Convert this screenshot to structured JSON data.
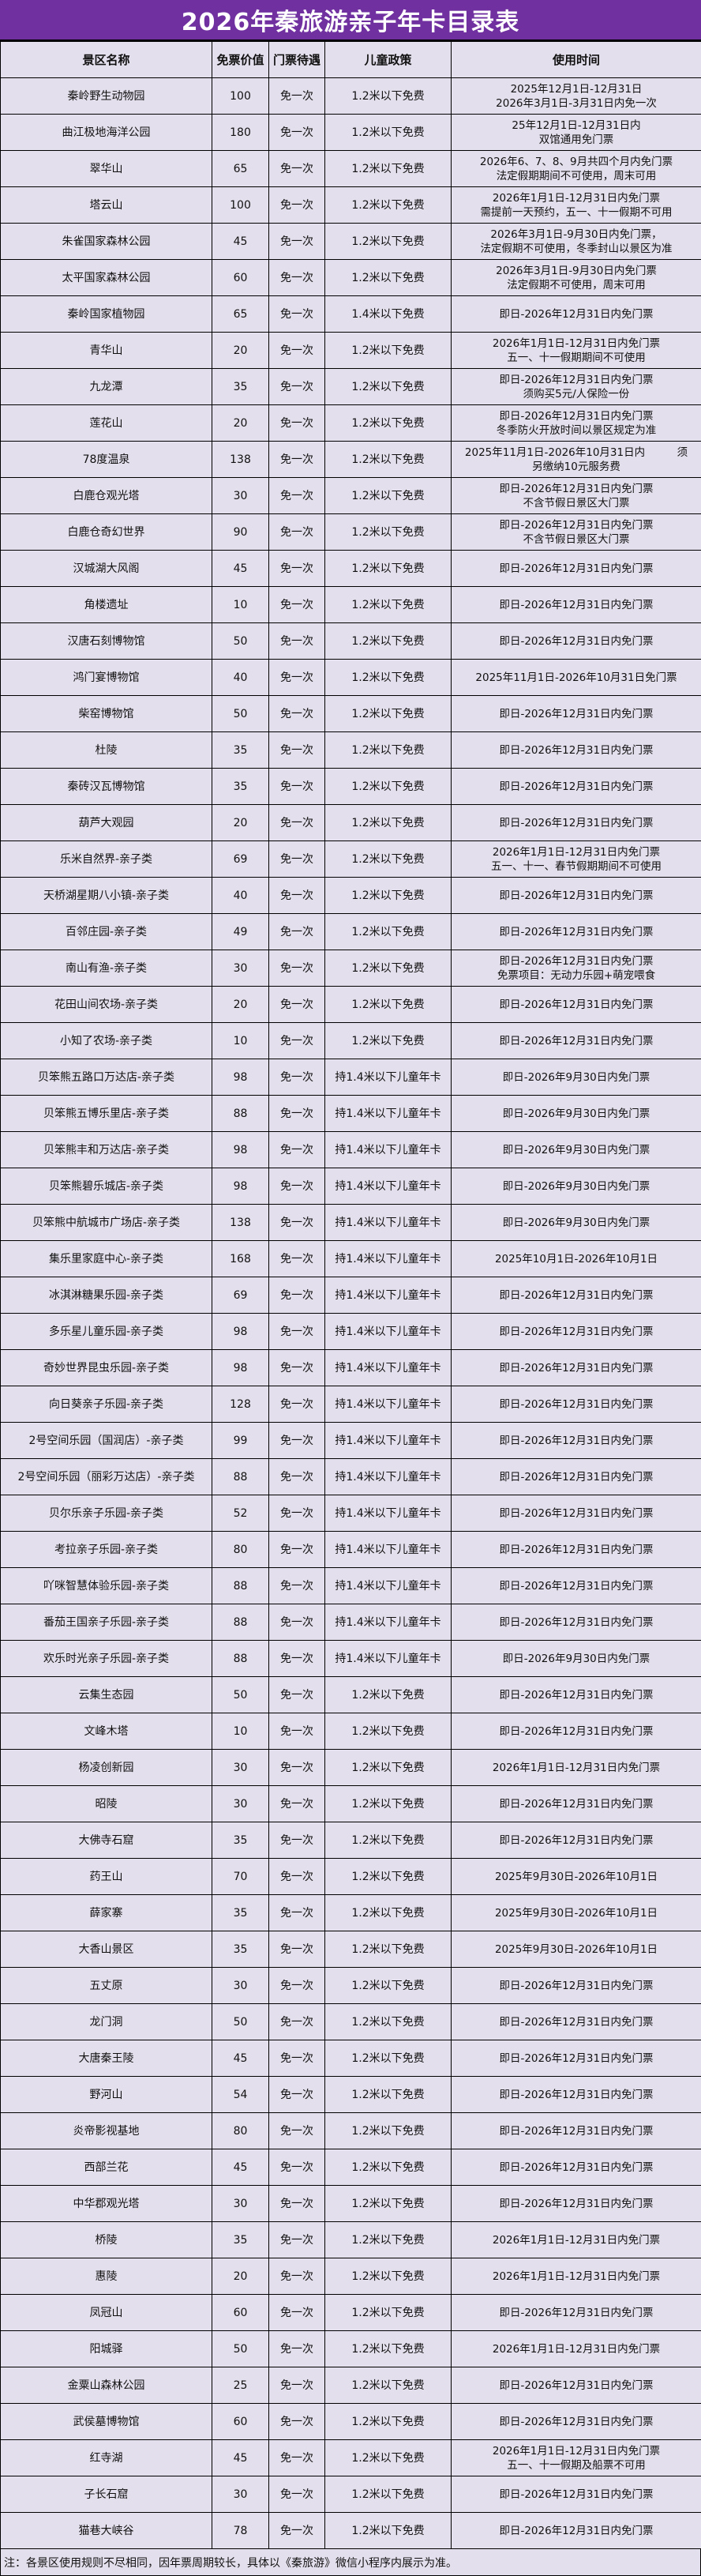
{
  "title": "2026年秦旅游亲子年卡目录表",
  "colors": {
    "title_bg": "#7030A0",
    "table_bg": "#E4DFEC"
  },
  "headers": [
    "景区名称",
    "免票价值",
    "门票待遇",
    "儿童政策",
    "使用时间"
  ],
  "rows": [
    {
      "name": "秦岭野生动物园",
      "price": "100",
      "ticket": "免一次",
      "child": "1.2米以下免费",
      "time": "2025年12月1日-12月31日\n2026年3月1日-3月31日内免一次"
    },
    {
      "name": "曲江极地海洋公园",
      "price": "180",
      "ticket": "免一次",
      "child": "1.2米以下免费",
      "time": "25年12月1日-12月31日内\n双馆通用免门票"
    },
    {
      "name": "翠华山",
      "price": "65",
      "ticket": "免一次",
      "child": "1.2米以下免费",
      "time": "2026年6、7、8、9月共四个月内免门票\n法定假期期间不可使用，周末可用"
    },
    {
      "name": "塔云山",
      "price": "100",
      "ticket": "免一次",
      "child": "1.2米以下免费",
      "time": "2026年1月1日-12月31日内免门票\n需提前一天预约，五一、十一假期不可用"
    },
    {
      "name": "朱雀国家森林公园",
      "price": "45",
      "ticket": "免一次",
      "child": "1.2米以下免费",
      "time": "2026年3月1日-9月30日内免门票，\n法定假期不可使用，冬季封山以景区为准"
    },
    {
      "name": "太平国家森林公园",
      "price": "60",
      "ticket": "免一次",
      "child": "1.2米以下免费",
      "time": "2026年3月1日-9月30日内免门票\n法定假期不可使用，周末可用"
    },
    {
      "name": "秦岭国家植物园",
      "price": "65",
      "ticket": "免一次",
      "child": "1.4米以下免费",
      "time": "即日-2026年12月31日内免门票"
    },
    {
      "name": "青华山",
      "price": "20",
      "ticket": "免一次",
      "child": "1.2米以下免费",
      "time": "2026年1月1日-12月31日内免门票\n五一、十一假期期间不可使用"
    },
    {
      "name": "九龙潭",
      "price": "35",
      "ticket": "免一次",
      "child": "1.2米以下免费",
      "time": "即日-2026年12月31日内免门票\n须购买5元/人保险一份"
    },
    {
      "name": "莲花山",
      "price": "20",
      "ticket": "免一次",
      "child": "1.2米以下免费",
      "time": "即日-2026年12月31日内免门票\n冬季防火开放时间以景区规定为准"
    },
    {
      "name": "78度温泉",
      "price": "138",
      "ticket": "免一次",
      "child": "1.2米以下免费",
      "time": "2025年11月1日-2026年10月31日内　　　须\n另缴纳10元服务费"
    },
    {
      "name": "白鹿仓观光塔",
      "price": "30",
      "ticket": "免一次",
      "child": "1.2米以下免费",
      "time": "即日-2026年12月31日内免门票\n不含节假日景区大门票"
    },
    {
      "name": "白鹿仓奇幻世界",
      "price": "90",
      "ticket": "免一次",
      "child": "1.2米以下免费",
      "time": "即日-2026年12月31日内免门票\n不含节假日景区大门票"
    },
    {
      "name": "汉城湖大风阁",
      "price": "45",
      "ticket": "免一次",
      "child": "1.2米以下免费",
      "time": "即日-2026年12月31日内免门票"
    },
    {
      "name": "角楼遗址",
      "price": "10",
      "ticket": "免一次",
      "child": "1.2米以下免费",
      "time": "即日-2026年12月31日内免门票"
    },
    {
      "name": "汉唐石刻博物馆",
      "price": "50",
      "ticket": "免一次",
      "child": "1.2米以下免费",
      "time": "即日-2026年12月31日内免门票"
    },
    {
      "name": "鸿门宴博物馆",
      "price": "40",
      "ticket": "免一次",
      "child": "1.2米以下免费",
      "time": "2025年11月1日-2026年10月31日免门票"
    },
    {
      "name": "柴窑博物馆",
      "price": "50",
      "ticket": "免一次",
      "child": "1.2米以下免费",
      "time": "即日-2026年12月31日内免门票"
    },
    {
      "name": "杜陵",
      "price": "35",
      "ticket": "免一次",
      "child": "1.2米以下免费",
      "time": "即日-2026年12月31日内免门票"
    },
    {
      "name": "秦砖汉瓦博物馆",
      "price": "35",
      "ticket": "免一次",
      "child": "1.2米以下免费",
      "time": "即日-2026年12月31日内免门票"
    },
    {
      "name": "葫芦大观园",
      "price": "20",
      "ticket": "免一次",
      "child": "1.2米以下免费",
      "time": "即日-2026年12月31日内免门票"
    },
    {
      "name": "乐米自然界-亲子类",
      "price": "69",
      "ticket": "免一次",
      "child": "1.2米以下免费",
      "time": "2026年1月1日-12月31日内免门票\n五一、十一、春节假期期间不可使用"
    },
    {
      "name": "天桥湖星期八小镇-亲子类",
      "price": "40",
      "ticket": "免一次",
      "child": "1.2米以下免费",
      "time": "即日-2026年12月31日内免门票"
    },
    {
      "name": "百邻庄园-亲子类",
      "price": "49",
      "ticket": "免一次",
      "child": "1.2米以下免费",
      "time": "即日-2026年12月31日内免门票"
    },
    {
      "name": "南山有渔-亲子类",
      "price": "30",
      "ticket": "免一次",
      "child": "1.2米以下免费",
      "time": "即日-2026年12月31日内免门票\n免票项目：无动力乐园+萌宠喂食"
    },
    {
      "name": "花田山间农场-亲子类",
      "price": "20",
      "ticket": "免一次",
      "child": "1.2米以下免费",
      "time": "即日-2026年12月31日内免门票"
    },
    {
      "name": "小知了农场-亲子类",
      "price": "10",
      "ticket": "免一次",
      "child": "1.2米以下免费",
      "time": "即日-2026年12月31日内免门票"
    },
    {
      "name": "贝笨熊五路口万达店-亲子类",
      "price": "98",
      "ticket": "免一次",
      "child": "持1.4米以下儿童年卡",
      "time": "即日-2026年9月30日内免门票"
    },
    {
      "name": "贝笨熊五博乐里店-亲子类",
      "price": "88",
      "ticket": "免一次",
      "child": "持1.4米以下儿童年卡",
      "time": "即日-2026年9月30日内免门票"
    },
    {
      "name": "贝笨熊丰和万达店-亲子类",
      "price": "98",
      "ticket": "免一次",
      "child": "持1.4米以下儿童年卡",
      "time": "即日-2026年9月30日内免门票"
    },
    {
      "name": "贝笨熊碧乐城店-亲子类",
      "price": "98",
      "ticket": "免一次",
      "child": "持1.4米以下儿童年卡",
      "time": "即日-2026年9月30日内免门票"
    },
    {
      "name": "贝笨熊中航城市广场店-亲子类",
      "price": "138",
      "ticket": "免一次",
      "child": "持1.4米以下儿童年卡",
      "time": "即日-2026年9月30日内免门票"
    },
    {
      "name": "集乐里家庭中心-亲子类",
      "price": "168",
      "ticket": "免一次",
      "child": "持1.4米以下儿童年卡",
      "time": "2025年10月1日-2026年10月1日"
    },
    {
      "name": "冰淇淋糖果乐园-亲子类",
      "price": "69",
      "ticket": "免一次",
      "child": "持1.4米以下儿童年卡",
      "time": "即日-2026年12月31日内免门票"
    },
    {
      "name": "多乐星儿童乐园-亲子类",
      "price": "98",
      "ticket": "免一次",
      "child": "持1.4米以下儿童年卡",
      "time": "即日-2026年12月31日内免门票"
    },
    {
      "name": "奇妙世界昆虫乐园-亲子类",
      "price": "98",
      "ticket": "免一次",
      "child": "持1.4米以下儿童年卡",
      "time": "即日-2026年12月31日内免门票"
    },
    {
      "name": "向日葵亲子乐园-亲子类",
      "price": "128",
      "ticket": "免一次",
      "child": "持1.4米以下儿童年卡",
      "time": "即日-2026年12月31日内免门票"
    },
    {
      "name": "2号空间乐园（国润店）-亲子类",
      "price": "99",
      "ticket": "免一次",
      "child": "持1.4米以下儿童年卡",
      "time": "即日-2026年12月31日内免门票"
    },
    {
      "name": "2号空间乐园（丽彩万达店）-亲子类",
      "price": "88",
      "ticket": "免一次",
      "child": "持1.4米以下儿童年卡",
      "time": "即日-2026年12月31日内免门票"
    },
    {
      "name": "贝尔乐亲子乐园-亲子类",
      "price": "52",
      "ticket": "免一次",
      "child": "持1.4米以下儿童年卡",
      "time": "即日-2026年12月31日内免门票"
    },
    {
      "name": "考拉亲子乐园-亲子类",
      "price": "80",
      "ticket": "免一次",
      "child": "持1.4米以下儿童年卡",
      "time": "即日-2026年12月31日内免门票"
    },
    {
      "name": "吖咪智慧体验乐园-亲子类",
      "price": "88",
      "ticket": "免一次",
      "child": "持1.4米以下儿童年卡",
      "time": "即日-2026年12月31日内免门票"
    },
    {
      "name": "番茄王国亲子乐园-亲子类",
      "price": "88",
      "ticket": "免一次",
      "child": "持1.4米以下儿童年卡",
      "time": "即日-2026年12月31日内免门票"
    },
    {
      "name": "欢乐时光亲子乐园-亲子类",
      "price": "88",
      "ticket": "免一次",
      "child": "持1.4米以下儿童年卡",
      "time": "即日-2026年9月30日内免门票"
    },
    {
      "name": "云集生态园",
      "price": "50",
      "ticket": "免一次",
      "child": "1.2米以下免费",
      "time": "即日-2026年12月31日内免门票"
    },
    {
      "name": "文峰木塔",
      "price": "10",
      "ticket": "免一次",
      "child": "1.2米以下免费",
      "time": "即日-2026年12月31日内免门票"
    },
    {
      "name": "杨凌创新园",
      "price": "30",
      "ticket": "免一次",
      "child": "1.2米以下免费",
      "time": "2026年1月1日-12月31日内免门票"
    },
    {
      "name": "昭陵",
      "price": "30",
      "ticket": "免一次",
      "child": "1.2米以下免费",
      "time": "即日-2026年12月31日内免门票"
    },
    {
      "name": "大佛寺石窟",
      "price": "35",
      "ticket": "免一次",
      "child": "1.2米以下免费",
      "time": "即日-2026年12月31日内免门票"
    },
    {
      "name": "药王山",
      "price": "70",
      "ticket": "免一次",
      "child": "1.2米以下免费",
      "time": "2025年9月30日-2026年10月1日"
    },
    {
      "name": "薛家寨",
      "price": "35",
      "ticket": "免一次",
      "child": "1.2米以下免费",
      "time": "2025年9月30日-2026年10月1日"
    },
    {
      "name": "大香山景区",
      "price": "35",
      "ticket": "免一次",
      "child": "1.2米以下免费",
      "time": "2025年9月30日-2026年10月1日"
    },
    {
      "name": "五丈原",
      "price": "30",
      "ticket": "免一次",
      "child": "1.2米以下免费",
      "time": "即日-2026年12月31日内免门票"
    },
    {
      "name": "龙门洞",
      "price": "50",
      "ticket": "免一次",
      "child": "1.2米以下免费",
      "time": "即日-2026年12月31日内免门票"
    },
    {
      "name": "大唐秦王陵",
      "price": "45",
      "ticket": "免一次",
      "child": "1.2米以下免费",
      "time": "即日-2026年12月31日内免门票"
    },
    {
      "name": "野河山",
      "price": "54",
      "ticket": "免一次",
      "child": "1.2米以下免费",
      "time": "即日-2026年12月31日内免门票"
    },
    {
      "name": "炎帝影视基地",
      "price": "80",
      "ticket": "免一次",
      "child": "1.2米以下免费",
      "time": "即日-2026年12月31日内免门票"
    },
    {
      "name": "西部兰花",
      "price": "45",
      "ticket": "免一次",
      "child": "1.2米以下免费",
      "time": "即日-2026年12月31日内免门票"
    },
    {
      "name": "中华郡观光塔",
      "price": "30",
      "ticket": "免一次",
      "child": "1.2米以下免费",
      "time": "即日-2026年12月31日内免门票"
    },
    {
      "name": "桥陵",
      "price": "35",
      "ticket": "免一次",
      "child": "1.2米以下免费",
      "time": "2026年1月1日-12月31日内免门票"
    },
    {
      "name": "惠陵",
      "price": "20",
      "ticket": "免一次",
      "child": "1.2米以下免费",
      "time": "2026年1月1日-12月31日内免门票"
    },
    {
      "name": "凤冠山",
      "price": "60",
      "ticket": "免一次",
      "child": "1.2米以下免费",
      "time": "即日-2026年12月31日内免门票"
    },
    {
      "name": "阳城驿",
      "price": "50",
      "ticket": "免一次",
      "child": "1.2米以下免费",
      "time": "2026年1月1日-12月31日内免门票"
    },
    {
      "name": "金粟山森林公园",
      "price": "25",
      "ticket": "免一次",
      "child": "1.2米以下免费",
      "time": "即日-2026年12月31日内免门票"
    },
    {
      "name": "武侯墓博物馆",
      "price": "60",
      "ticket": "免一次",
      "child": "1.2米以下免费",
      "time": "即日-2026年12月31日内免门票"
    },
    {
      "name": "红寺湖",
      "price": "45",
      "ticket": "免一次",
      "child": "1.2米以下免费",
      "time": "2026年1月1日-12月31日内免门票\n五一、十一假期及船票不可用"
    },
    {
      "name": "子长石窟",
      "price": "30",
      "ticket": "免一次",
      "child": "1.2米以下免费",
      "time": "即日-2026年12月31日内免门票"
    },
    {
      "name": "猫巷大峡谷",
      "price": "78",
      "ticket": "免一次",
      "child": "1.2米以下免费",
      "time": "即日-2026年12月31日内免门票"
    }
  ],
  "note": "注：各景区使用规则不尽相同，因年票周期较长，具体以《秦旅游》微信小程序内展示为准。"
}
